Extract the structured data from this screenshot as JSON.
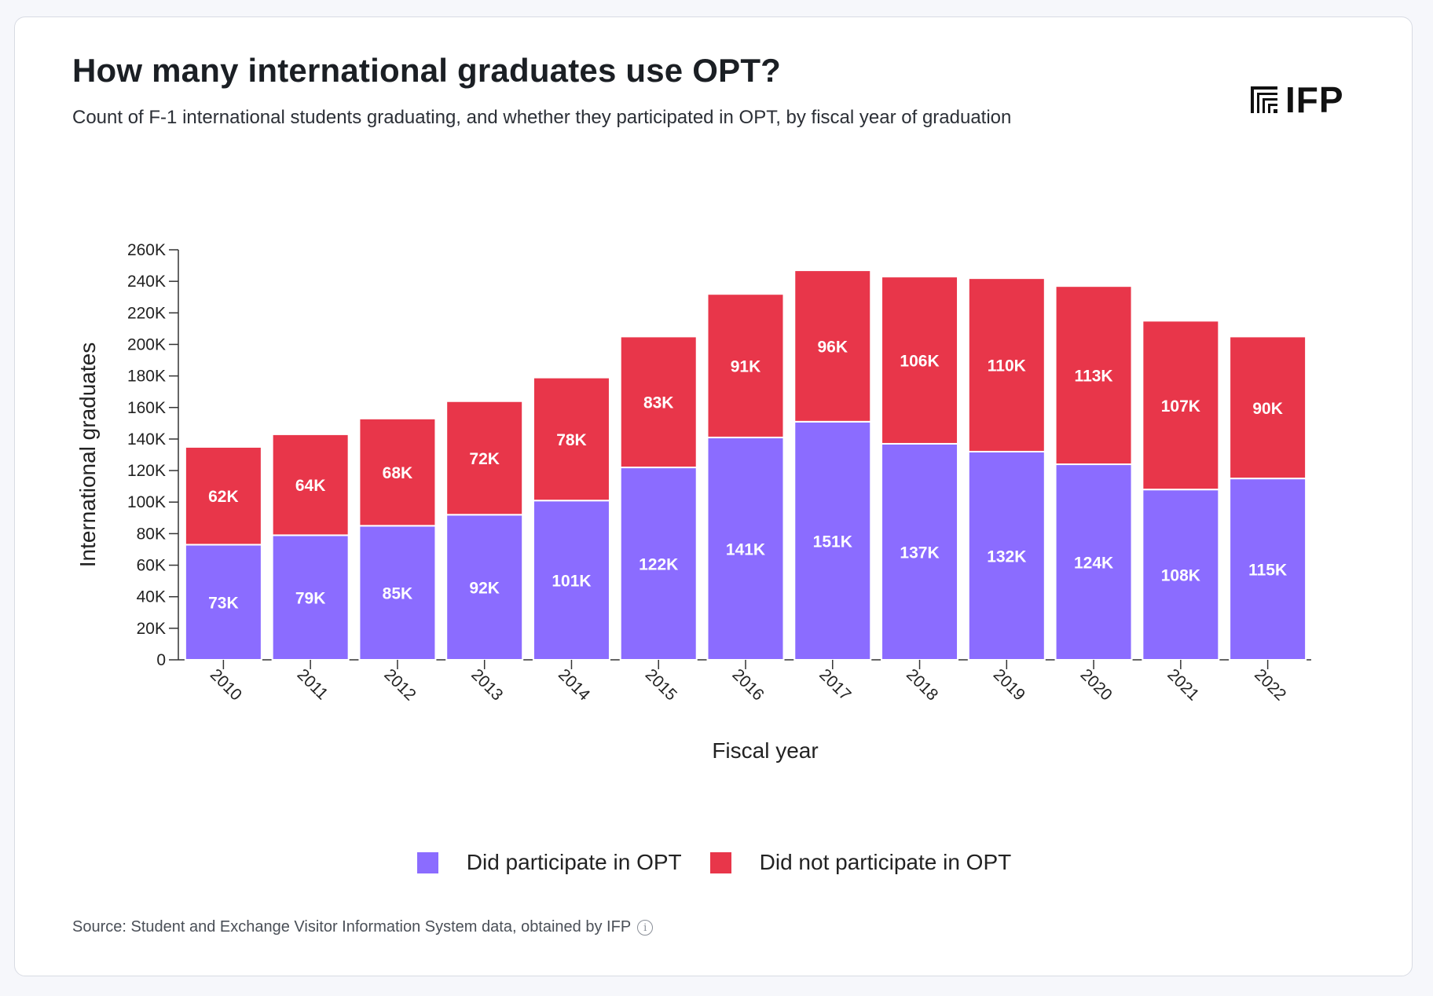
{
  "title": "How many international graduates use OPT?",
  "subtitle": "Count of F-1 international students graduating, and whether they participated in OPT, by fiscal year of graduation",
  "logo_text": "IFP",
  "source": "Source: Student and Exchange Visitor Information System data, obtained by IFP",
  "colors": {
    "participated": "#8b6cff",
    "not_participated": "#e8364a"
  },
  "chart_data": {
    "type": "bar",
    "stacked": true,
    "categories": [
      "2010",
      "2011",
      "2012",
      "2013",
      "2014",
      "2015",
      "2016",
      "2017",
      "2018",
      "2019",
      "2020",
      "2021",
      "2022"
    ],
    "series": [
      {
        "name": "Did participate in OPT",
        "values": [
          73,
          79,
          85,
          92,
          101,
          122,
          141,
          151,
          137,
          132,
          124,
          108,
          115
        ],
        "labels": [
          "73K",
          "79K",
          "85K",
          "92K",
          "101K",
          "122K",
          "141K",
          "151K",
          "137K",
          "132K",
          "124K",
          "108K",
          "115K"
        ]
      },
      {
        "name": "Did not participate in OPT",
        "values": [
          62,
          64,
          68,
          72,
          78,
          83,
          91,
          96,
          106,
          110,
          113,
          107,
          90
        ],
        "labels": [
          "62K",
          "64K",
          "68K",
          "72K",
          "78K",
          "83K",
          "91K",
          "96K",
          "106K",
          "110K",
          "113K",
          "107K",
          "90K"
        ]
      }
    ],
    "xlabel": "Fiscal year",
    "ylabel": "International graduates",
    "ylim": [
      0,
      260
    ],
    "yticks": [
      "0",
      "20K",
      "40K",
      "60K",
      "80K",
      "100K",
      "120K",
      "140K",
      "160K",
      "180K",
      "200K",
      "220K",
      "240K",
      "260K"
    ],
    "legend": "bottom-center"
  }
}
